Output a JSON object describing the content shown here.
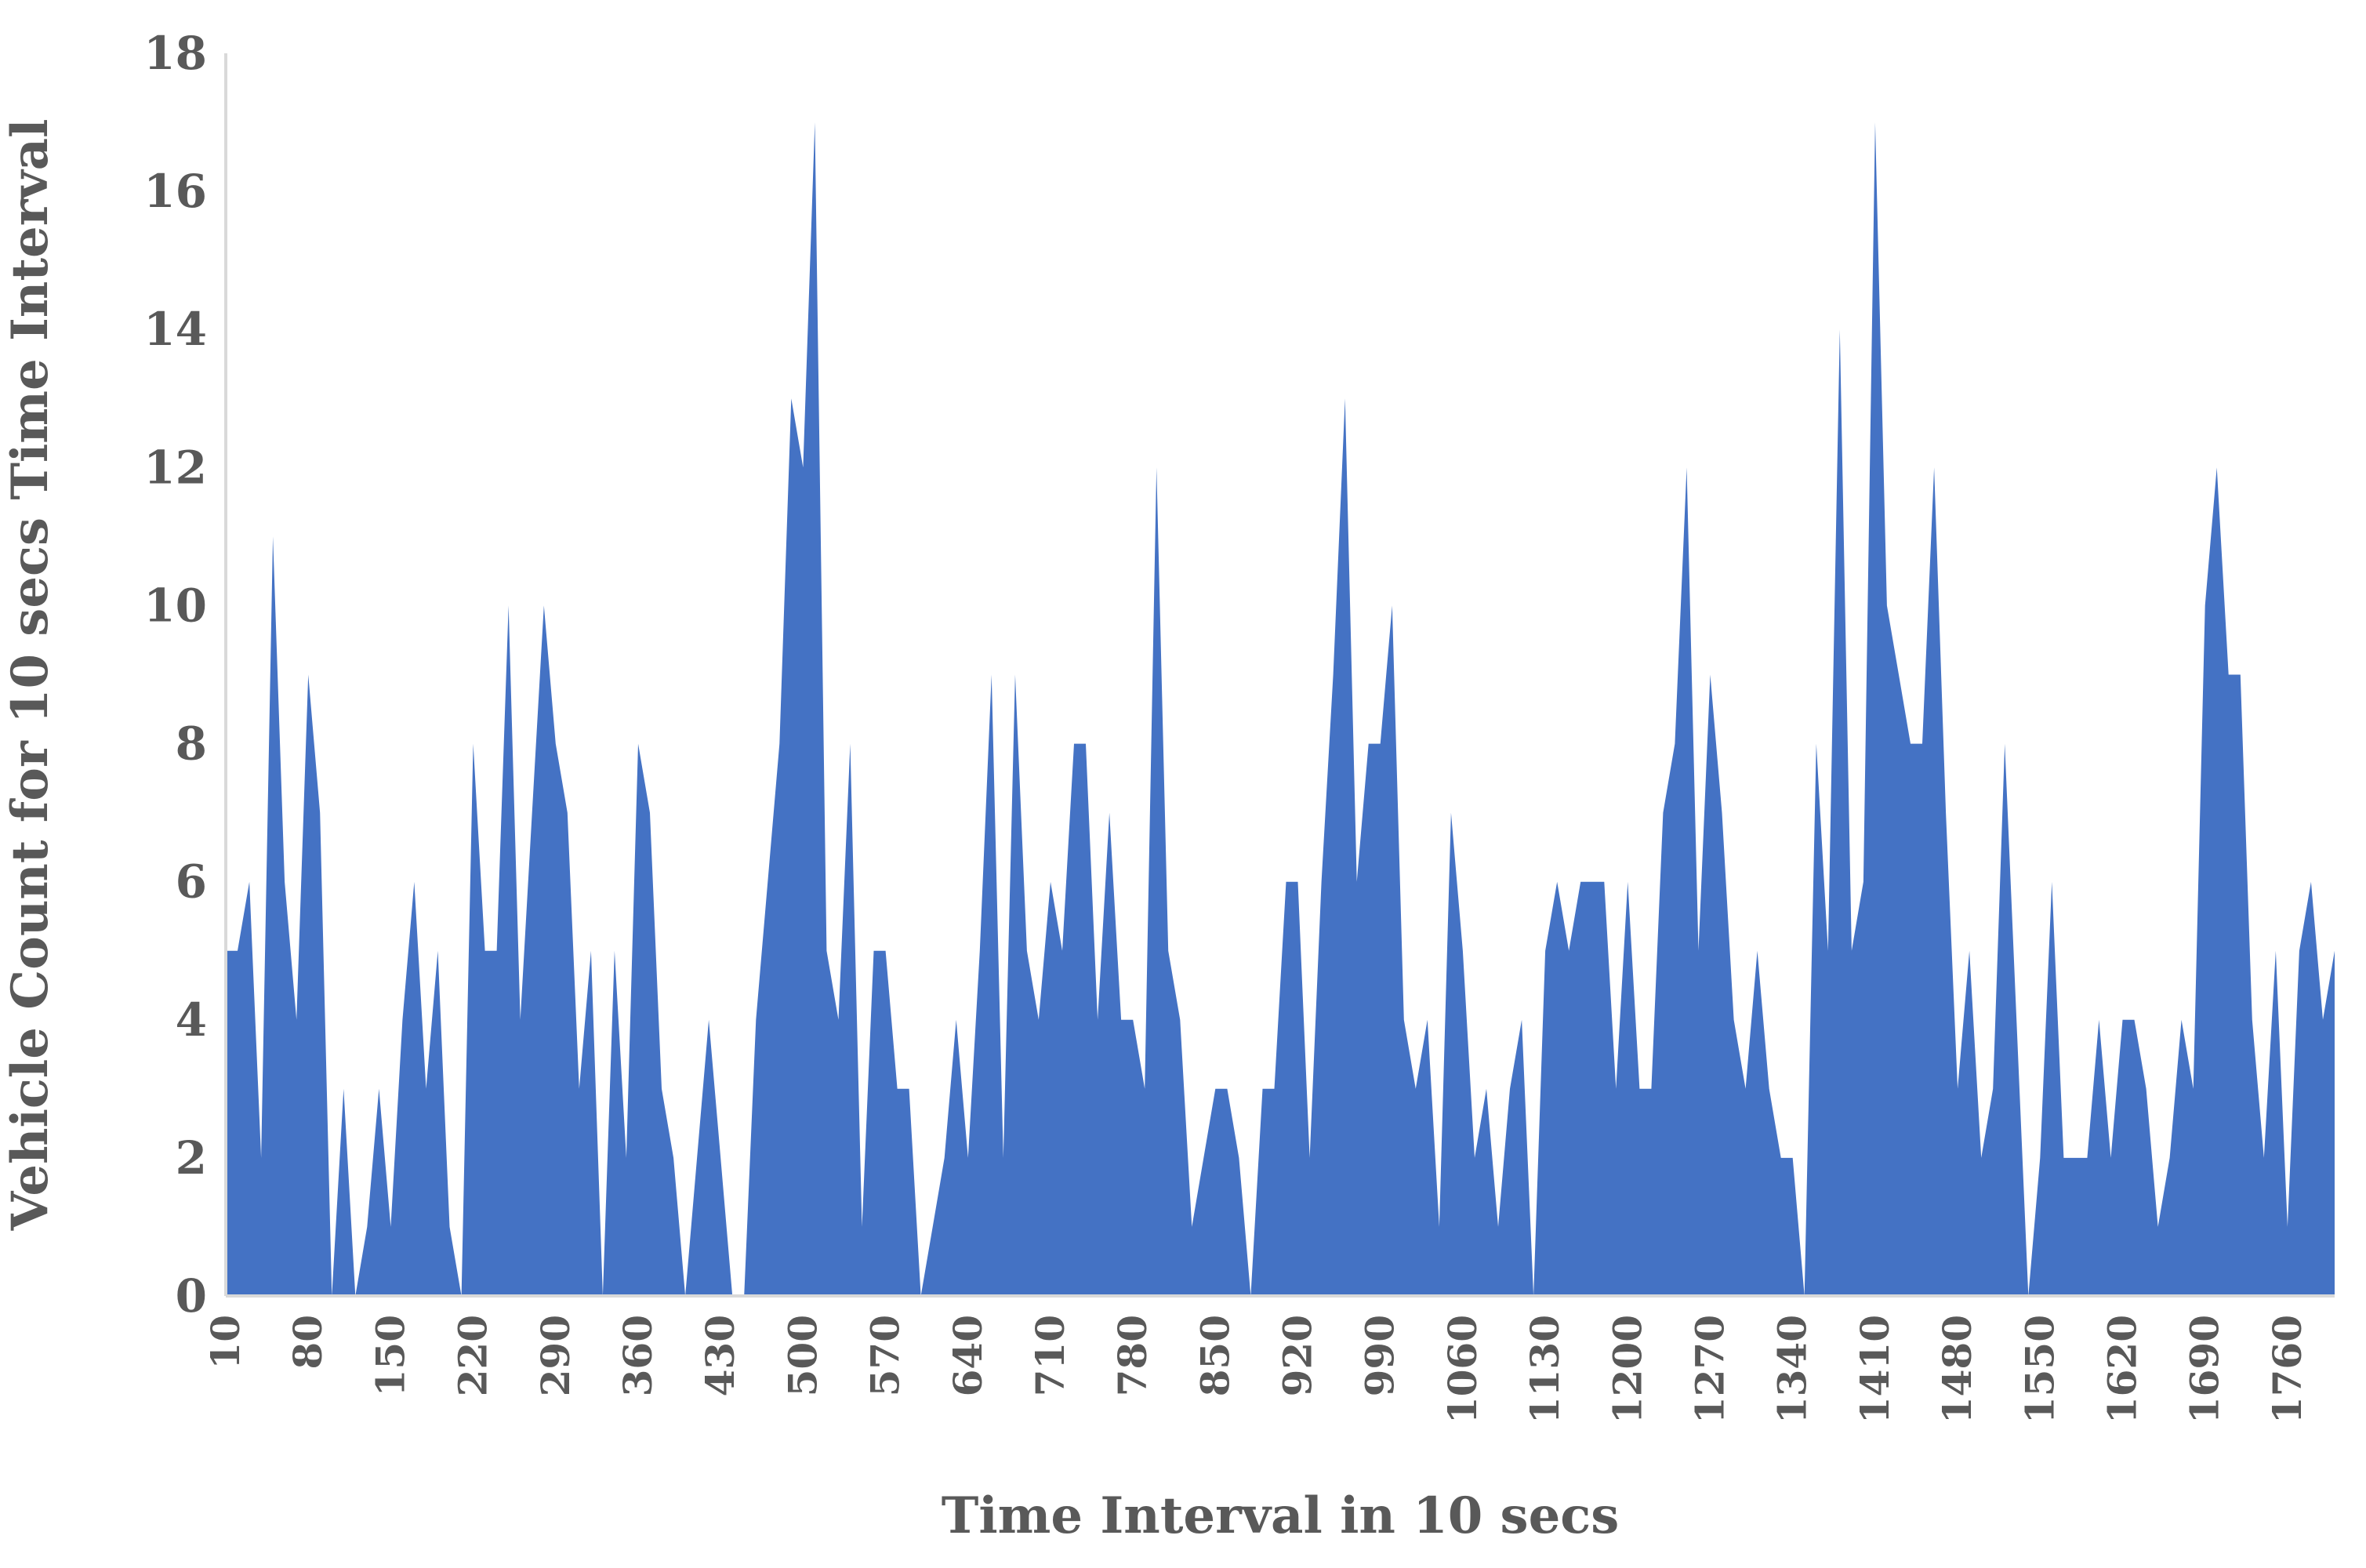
{
  "chart_data": {
    "type": "area",
    "title": "",
    "xlabel": "Time Interval in 10 secs",
    "ylabel": "Vehicle Count for 10 secs Time Interval",
    "ylim": [
      0,
      18
    ],
    "y_ticks": [
      "0",
      "2",
      "4",
      "6",
      "8",
      "10",
      "12",
      "14",
      "16",
      "18"
    ],
    "x_tick_labels": [
      "10",
      "80",
      "150",
      "220",
      "290",
      "360",
      "430",
      "500",
      "570",
      "640",
      "710",
      "780",
      "850",
      "920",
      "990",
      "1060",
      "1130",
      "1200",
      "1270",
      "1340",
      "1410",
      "1480",
      "1550",
      "1620",
      "1690",
      "1760"
    ],
    "x_range": [
      10,
      1800
    ],
    "grid": false,
    "legend": "none",
    "color": "#4472c4",
    "series": [
      {
        "x": [
          10,
          20,
          30,
          40,
          50,
          60,
          70,
          80,
          90,
          100,
          110,
          120,
          130,
          140,
          150,
          160,
          170,
          180,
          190,
          200,
          210,
          220,
          230,
          240,
          250,
          260,
          270,
          280,
          290,
          300,
          310,
          320,
          330,
          340,
          350,
          360,
          370,
          380,
          390,
          400,
          410,
          420,
          430,
          440,
          450,
          460,
          470,
          480,
          490,
          500,
          510,
          520,
          530,
          540,
          550,
          560,
          570,
          580,
          590,
          600,
          610,
          620,
          630,
          640,
          650,
          660,
          670,
          680,
          690,
          700,
          710,
          720,
          730,
          740,
          750,
          760,
          770,
          780,
          790,
          800,
          810,
          820,
          830,
          840,
          850,
          860,
          870,
          880,
          890,
          900,
          910,
          920,
          930,
          940,
          950,
          960,
          970,
          980,
          990,
          1000,
          1010,
          1020,
          1030,
          1040,
          1050,
          1060,
          1070,
          1080,
          1090,
          1100,
          1110,
          1120,
          1130,
          1140,
          1150,
          1160,
          1170,
          1180,
          1190,
          1200,
          1210,
          1220,
          1230,
          1240,
          1250,
          1260,
          1270,
          1280,
          1290,
          1300,
          1310,
          1320,
          1330,
          1340,
          1350,
          1360,
          1370,
          1380,
          1390,
          1400,
          1410,
          1420,
          1430,
          1440,
          1450,
          1460,
          1470,
          1480,
          1490,
          1500,
          1510,
          1520,
          1530,
          1540,
          1550,
          1560,
          1570,
          1580,
          1590,
          1600,
          1610,
          1620,
          1630,
          1640,
          1650,
          1660,
          1670,
          1680,
          1690,
          1700,
          1710,
          1720,
          1730,
          1740,
          1750,
          1760,
          1770,
          1780,
          1790,
          1800
        ],
        "values": [
          5,
          5,
          6,
          2,
          11,
          6,
          4,
          9,
          7,
          0,
          3,
          0,
          1,
          3,
          1,
          4,
          6,
          3,
          5,
          1,
          0,
          8,
          5,
          5,
          10,
          4,
          7,
          10,
          8,
          7,
          3,
          5,
          0,
          5,
          2,
          8,
          7,
          3,
          2,
          0,
          2,
          4,
          2,
          0,
          0,
          4,
          6,
          8,
          13,
          12,
          17,
          5,
          4,
          8,
          1,
          5,
          5,
          3,
          3,
          0,
          1,
          2,
          4,
          2,
          5,
          9,
          2,
          9,
          5,
          4,
          6,
          5,
          8,
          8,
          4,
          7,
          4,
          4,
          3,
          12,
          5,
          4,
          1,
          2,
          3,
          3,
          2,
          0,
          3,
          3,
          6,
          6,
          2,
          6,
          9,
          13,
          6,
          8,
          8,
          10,
          4,
          3,
          4,
          1,
          7,
          5,
          2,
          3,
          1,
          3,
          4,
          0,
          5,
          6,
          5,
          6,
          6,
          6,
          3,
          6,
          3,
          3,
          7,
          8,
          12,
          5,
          9,
          7,
          4,
          3,
          5,
          3,
          2,
          2,
          0,
          8,
          5,
          14,
          5,
          6,
          17,
          10,
          9,
          8,
          8,
          12,
          7,
          3,
          5,
          2,
          3,
          8,
          4,
          0,
          2,
          6,
          2,
          2,
          2,
          4,
          2,
          4,
          4,
          3,
          1,
          2,
          4,
          3,
          10,
          12,
          9,
          9,
          4,
          2,
          5,
          1,
          5,
          6,
          4,
          5
        ]
      }
    ]
  }
}
